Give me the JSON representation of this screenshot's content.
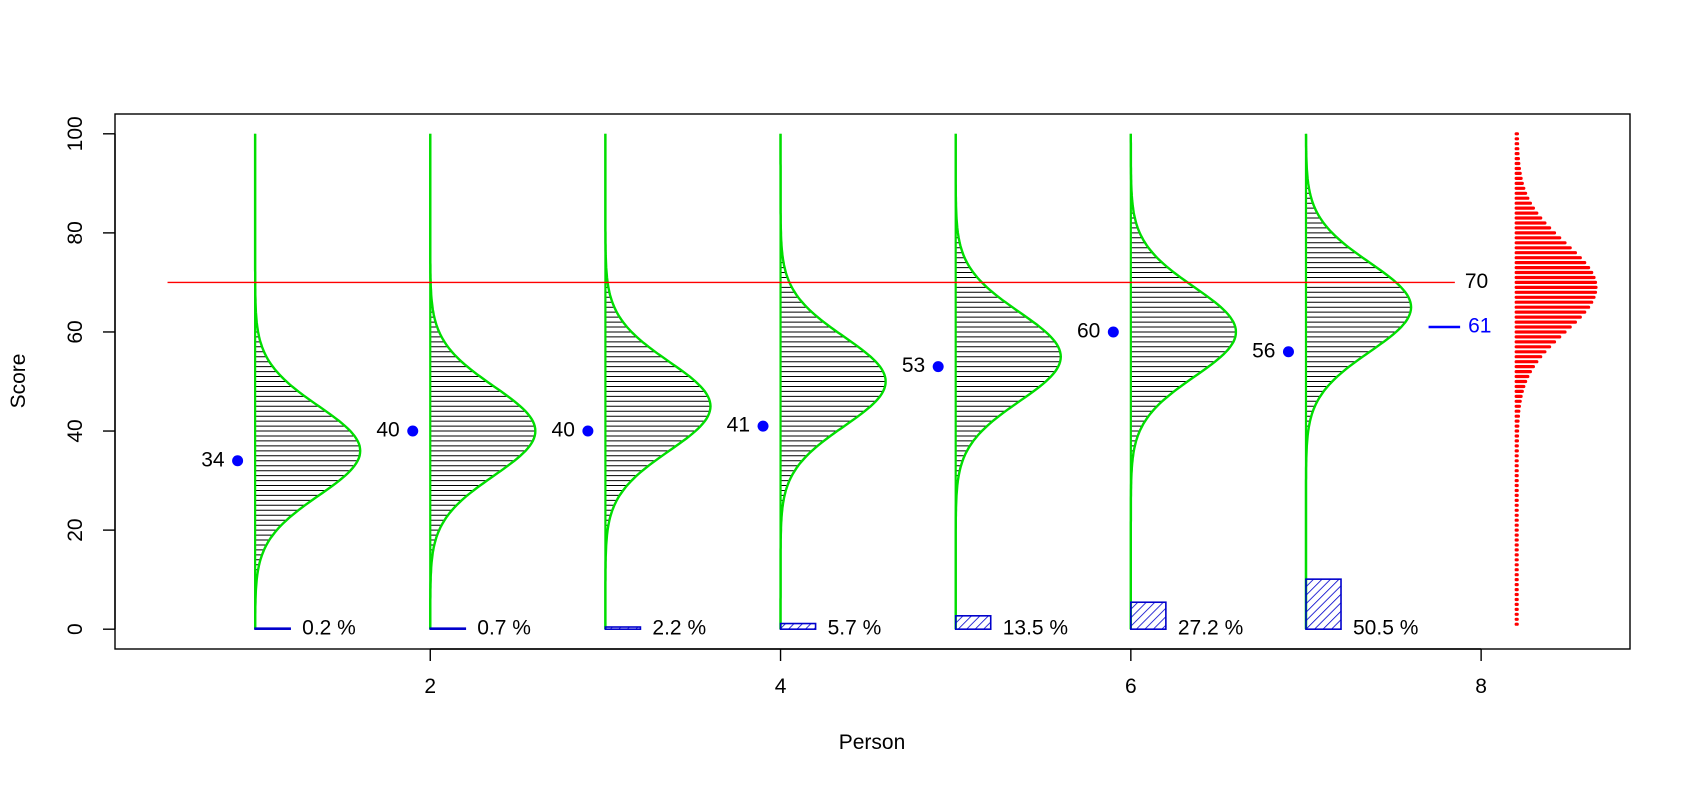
{
  "chart_data": {
    "type": "line",
    "title": "",
    "xlabel": "Person",
    "ylabel": "Score",
    "xlim": [
      0.2,
      8.85
    ],
    "ylim": [
      -4,
      104
    ],
    "x_ticks": [
      2,
      4,
      6,
      8
    ],
    "y_ticks": [
      0,
      20,
      40,
      60,
      80,
      100
    ],
    "x_tick_labels": [
      "2",
      "4",
      "6",
      "8"
    ],
    "y_tick_labels": [
      "0",
      "20",
      "40",
      "60",
      "80",
      "100"
    ],
    "cutoff": {
      "value": 70,
      "label": "70"
    },
    "overall_mean": {
      "value": 61,
      "label": "61"
    },
    "persons": [
      {
        "x": 1,
        "score": 34,
        "score_label": "34",
        "mean": 36,
        "sd": 9,
        "prob": 0.2,
        "prob_label": "0.2 %"
      },
      {
        "x": 2,
        "score": 40,
        "score_label": "40",
        "mean": 40,
        "sd": 9,
        "prob": 0.7,
        "prob_label": "0.7 %"
      },
      {
        "x": 3,
        "score": 40,
        "score_label": "40",
        "mean": 45,
        "sd": 9,
        "prob": 2.2,
        "prob_label": "2.2 %"
      },
      {
        "x": 4,
        "score": 41,
        "score_label": "41",
        "mean": 50,
        "sd": 9,
        "prob": 5.7,
        "prob_label": "5.7 %"
      },
      {
        "x": 5,
        "score": 53,
        "score_label": "53",
        "mean": 55,
        "sd": 9,
        "prob": 13.5,
        "prob_label": "13.5 %"
      },
      {
        "x": 6,
        "score": 60,
        "score_label": "60",
        "mean": 60,
        "sd": 9,
        "prob": 27.2,
        "prob_label": "27.2 %"
      },
      {
        "x": 7,
        "score": 56,
        "score_label": "56",
        "mean": 65,
        "sd": 9,
        "prob": 50.5,
        "prob_label": "50.5 %"
      }
    ],
    "population": {
      "x": 8.2,
      "mean": 69,
      "sd": 9
    },
    "grid": false,
    "legend": "none",
    "colors": {
      "curve": "#00dd00",
      "hatch": "#000000",
      "point": "#0000ff",
      "cutoff": "#ff0000",
      "population": "#ff0000",
      "bar": "#0000cc"
    }
  }
}
